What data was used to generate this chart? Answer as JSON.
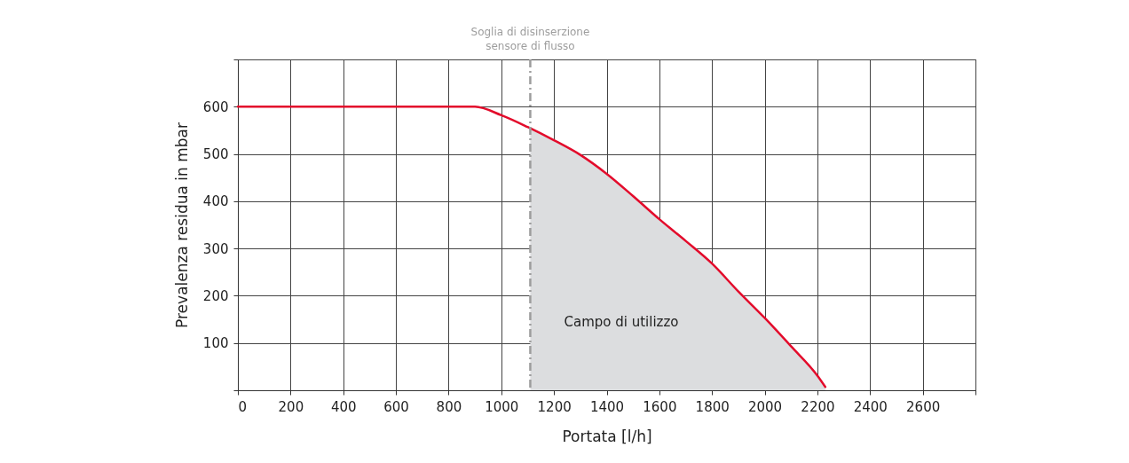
{
  "chart_data": {
    "type": "line",
    "xlabel": "Portata [l/h]",
    "ylabel": "Prevalenza residua in mbar",
    "xlim": [
      0,
      2800
    ],
    "ylim": [
      0,
      700
    ],
    "xticks": [
      0,
      200,
      400,
      600,
      800,
      1000,
      1200,
      1400,
      1600,
      1800,
      2000,
      2200,
      2400,
      2600,
      {
        "value": 2800,
        "label": null
      }
    ],
    "yticks": [
      {
        "value": 0,
        "label": null
      },
      100,
      200,
      300,
      400,
      500,
      600,
      {
        "value": 700,
        "label": null
      }
    ],
    "grid": true,
    "series": [
      {
        "type": "area",
        "color": "#dcdddf",
        "x": [
          1110,
          1200,
          1300,
          1400,
          1500,
          1600,
          1700,
          1800,
          1900,
          2000,
          2100,
          2200,
          2230
        ],
        "values": [
          557,
          529,
          498,
          458,
          411,
          362,
          316,
          268,
          209,
          153,
          93,
          31,
          7
        ]
      },
      {
        "color": "#e30b2b",
        "x": [
          0,
          900,
          1000,
          1100,
          1200,
          1300,
          1400,
          1500,
          1600,
          1700,
          1800,
          1900,
          2000,
          2100,
          2200,
          2230
        ],
        "values": [
          600,
          600,
          582,
          557,
          529,
          498,
          458,
          411,
          362,
          316,
          268,
          209,
          153,
          93,
          31,
          7
        ]
      }
    ],
    "ref_lines": [
      {
        "axis": "x",
        "value": 1110,
        "label": "Soglia di disinserzione\nsensore di flusso",
        "color": "#9d9d9d",
        "line_style": "dashdot"
      }
    ],
    "annotations": [
      "Campo di utilizzo"
    ]
  }
}
